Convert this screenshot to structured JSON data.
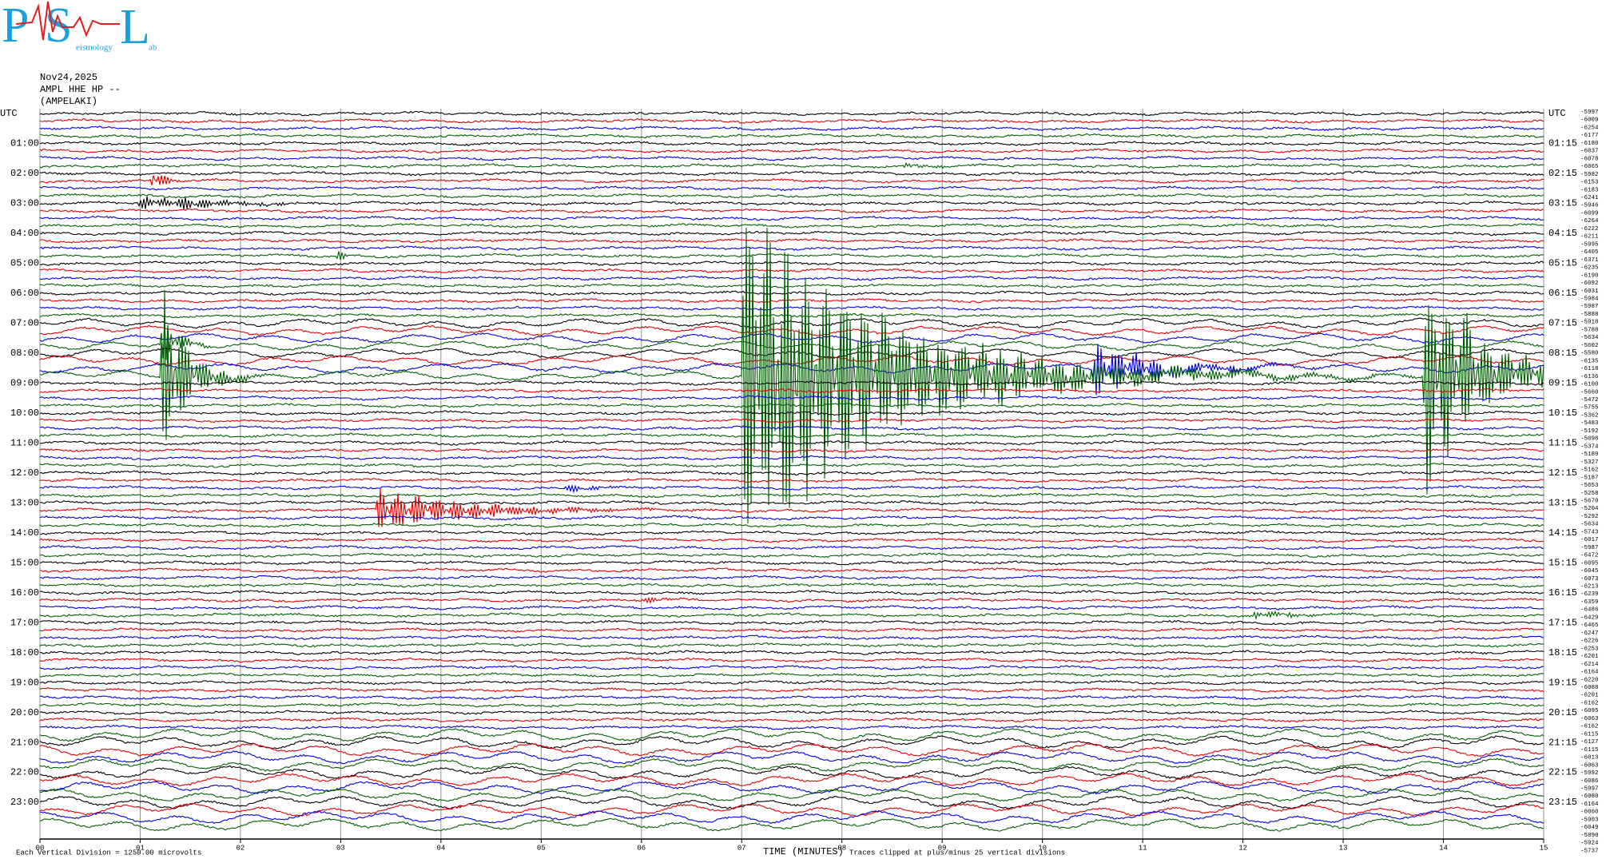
{
  "logo": {
    "p": "P",
    "s": "S",
    "l": "L",
    "seismology": "eismology",
    "lab": "ab"
  },
  "chart_data": {
    "type": "seismogram",
    "title": [
      "Nov24,2025",
      "AMPL HHE HP --",
      "(AMPELAKI)"
    ],
    "xlabel": "TIME (MINUTES)",
    "scale_note": "Each Vertical Division = 1250.00 microvolts",
    "clip_note": "Traces clipped at plus/minus 25 vertical divisions",
    "xlim": [
      0,
      15
    ],
    "xticks": [
      {
        "value": 0,
        "label": "00"
      },
      {
        "value": 1,
        "label": "01"
      },
      {
        "value": 2,
        "label": "02"
      },
      {
        "value": 3,
        "label": "03"
      },
      {
        "value": 4,
        "label": "04"
      },
      {
        "value": 5,
        "label": "05"
      },
      {
        "value": 6,
        "label": "06"
      },
      {
        "value": 7,
        "label": "07"
      },
      {
        "value": 8,
        "label": "08"
      },
      {
        "value": 9,
        "label": "09"
      },
      {
        "value": 10,
        "label": "10"
      },
      {
        "value": 11,
        "label": "11"
      },
      {
        "value": 12,
        "label": "12"
      },
      {
        "value": 13,
        "label": "13"
      },
      {
        "value": 14,
        "label": "14"
      },
      {
        "value": 15,
        "label": "15"
      }
    ],
    "grid": true,
    "colors": [
      "#000000",
      "#e00000",
      "#0000e0",
      "#006000"
    ],
    "left_labels": [
      "UTC",
      "01:00",
      "02:00",
      "03:00",
      "04:00",
      "05:00",
      "06:00",
      "07:00",
      "08:00",
      "09:00",
      "10:00",
      "11:00",
      "12:00",
      "13:00",
      "14:00",
      "15:00",
      "16:00",
      "17:00",
      "18:00",
      "19:00",
      "20:00",
      "21:00",
      "22:00",
      "23:00"
    ],
    "right_labels": [
      "UTC",
      "01:15",
      "02:15",
      "03:15",
      "04:15",
      "05:15",
      "06:15",
      "07:15",
      "08:15",
      "09:15",
      "10:15",
      "11:15",
      "12:15",
      "13:15",
      "14:15",
      "15:15",
      "16:15",
      "17:15",
      "18:15",
      "19:15",
      "20:15",
      "21:15",
      "22:15",
      "23:15"
    ],
    "trace_means": [
      -5997,
      -6009,
      -6254,
      -6177,
      -6180,
      -6037,
      -6078,
      -6065,
      -5982,
      -6153,
      -6183,
      -6241,
      -5946,
      -6099,
      -6264,
      -6222,
      -6211,
      -5995,
      -6405,
      -6371,
      -6235,
      -6190,
      -6092,
      -6031,
      -5984,
      -5987,
      -5888,
      -5918,
      -5788,
      -5634,
      -5602,
      -5580,
      -6135,
      -6118,
      -6136,
      -6100,
      -5660,
      -5472,
      -5755,
      -5362,
      -5483,
      -5192,
      -5098,
      -5374,
      -5189,
      -5327,
      -5162,
      -5187,
      -5653,
      -5258,
      -5670,
      -5204,
      -5292,
      -5634,
      -5743,
      -6017,
      -5987,
      -6472,
      -6095,
      -6045,
      -6073,
      -6213,
      -6239,
      -6359,
      -6486,
      -6429,
      -6465,
      -6247,
      -6226,
      -6253,
      -6201,
      -6214,
      -6164,
      -6220,
      -6088,
      -6201,
      -6162,
      -6095,
      -6063,
      -6162,
      -6115,
      -6127,
      -6115,
      -6013,
      -6063,
      -5992,
      -6086,
      -5997,
      -6080,
      -6164,
      -6060,
      -5903,
      -6049,
      -5890,
      -5924,
      -5737
    ]
  }
}
